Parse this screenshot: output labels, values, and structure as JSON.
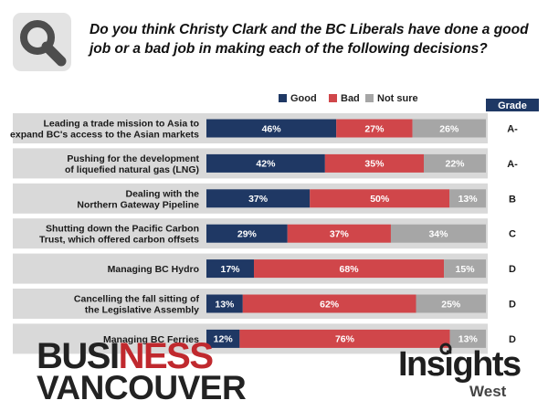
{
  "header": {
    "question": "Do you think Christy Clark and the BC Liberals have done a good job or a bad job in making each of the following decisions?"
  },
  "icons": {
    "logo": "magnifier-icon"
  },
  "colors": {
    "good": "#1f3864",
    "bad": "#d0464a",
    "not_sure": "#a6a6a6",
    "grade_header": "#1f3864",
    "row_bg": "#d9d9d9"
  },
  "chart_data": {
    "type": "bar",
    "orientation": "horizontal",
    "stacked": true,
    "categories": [
      [
        "Leading a trade mission to Asia to",
        "expand BC's access to the Asian markets"
      ],
      [
        "Pushing for the development",
        "of liquefied natural gas (LNG)"
      ],
      [
        "Dealing with the",
        "Northern Gateway Pipeline"
      ],
      [
        "Shutting down the Pacific Carbon",
        "Trust, which offered carbon offsets"
      ],
      [
        "Managing BC Hydro"
      ],
      [
        "Cancelling the fall sitting of",
        "the Legislative Assembly"
      ],
      [
        "Managing BC Ferries"
      ]
    ],
    "series": [
      {
        "name": "Good",
        "values": [
          46,
          42,
          37,
          29,
          17,
          13,
          12
        ]
      },
      {
        "name": "Bad",
        "values": [
          27,
          35,
          50,
          37,
          68,
          62,
          76
        ]
      },
      {
        "name": "Not sure",
        "values": [
          26,
          22,
          13,
          34,
          15,
          25,
          13
        ]
      }
    ],
    "value_format": "%",
    "legend": "top",
    "grade_header": "Grade",
    "grades": [
      "A-",
      "A-",
      "B",
      "C",
      "D",
      "D",
      "D"
    ]
  },
  "branding": {
    "business_vancouver": [
      "BUSI",
      "NESS",
      "VANCOUVER"
    ],
    "insights_west": [
      "Insights",
      "West"
    ]
  }
}
